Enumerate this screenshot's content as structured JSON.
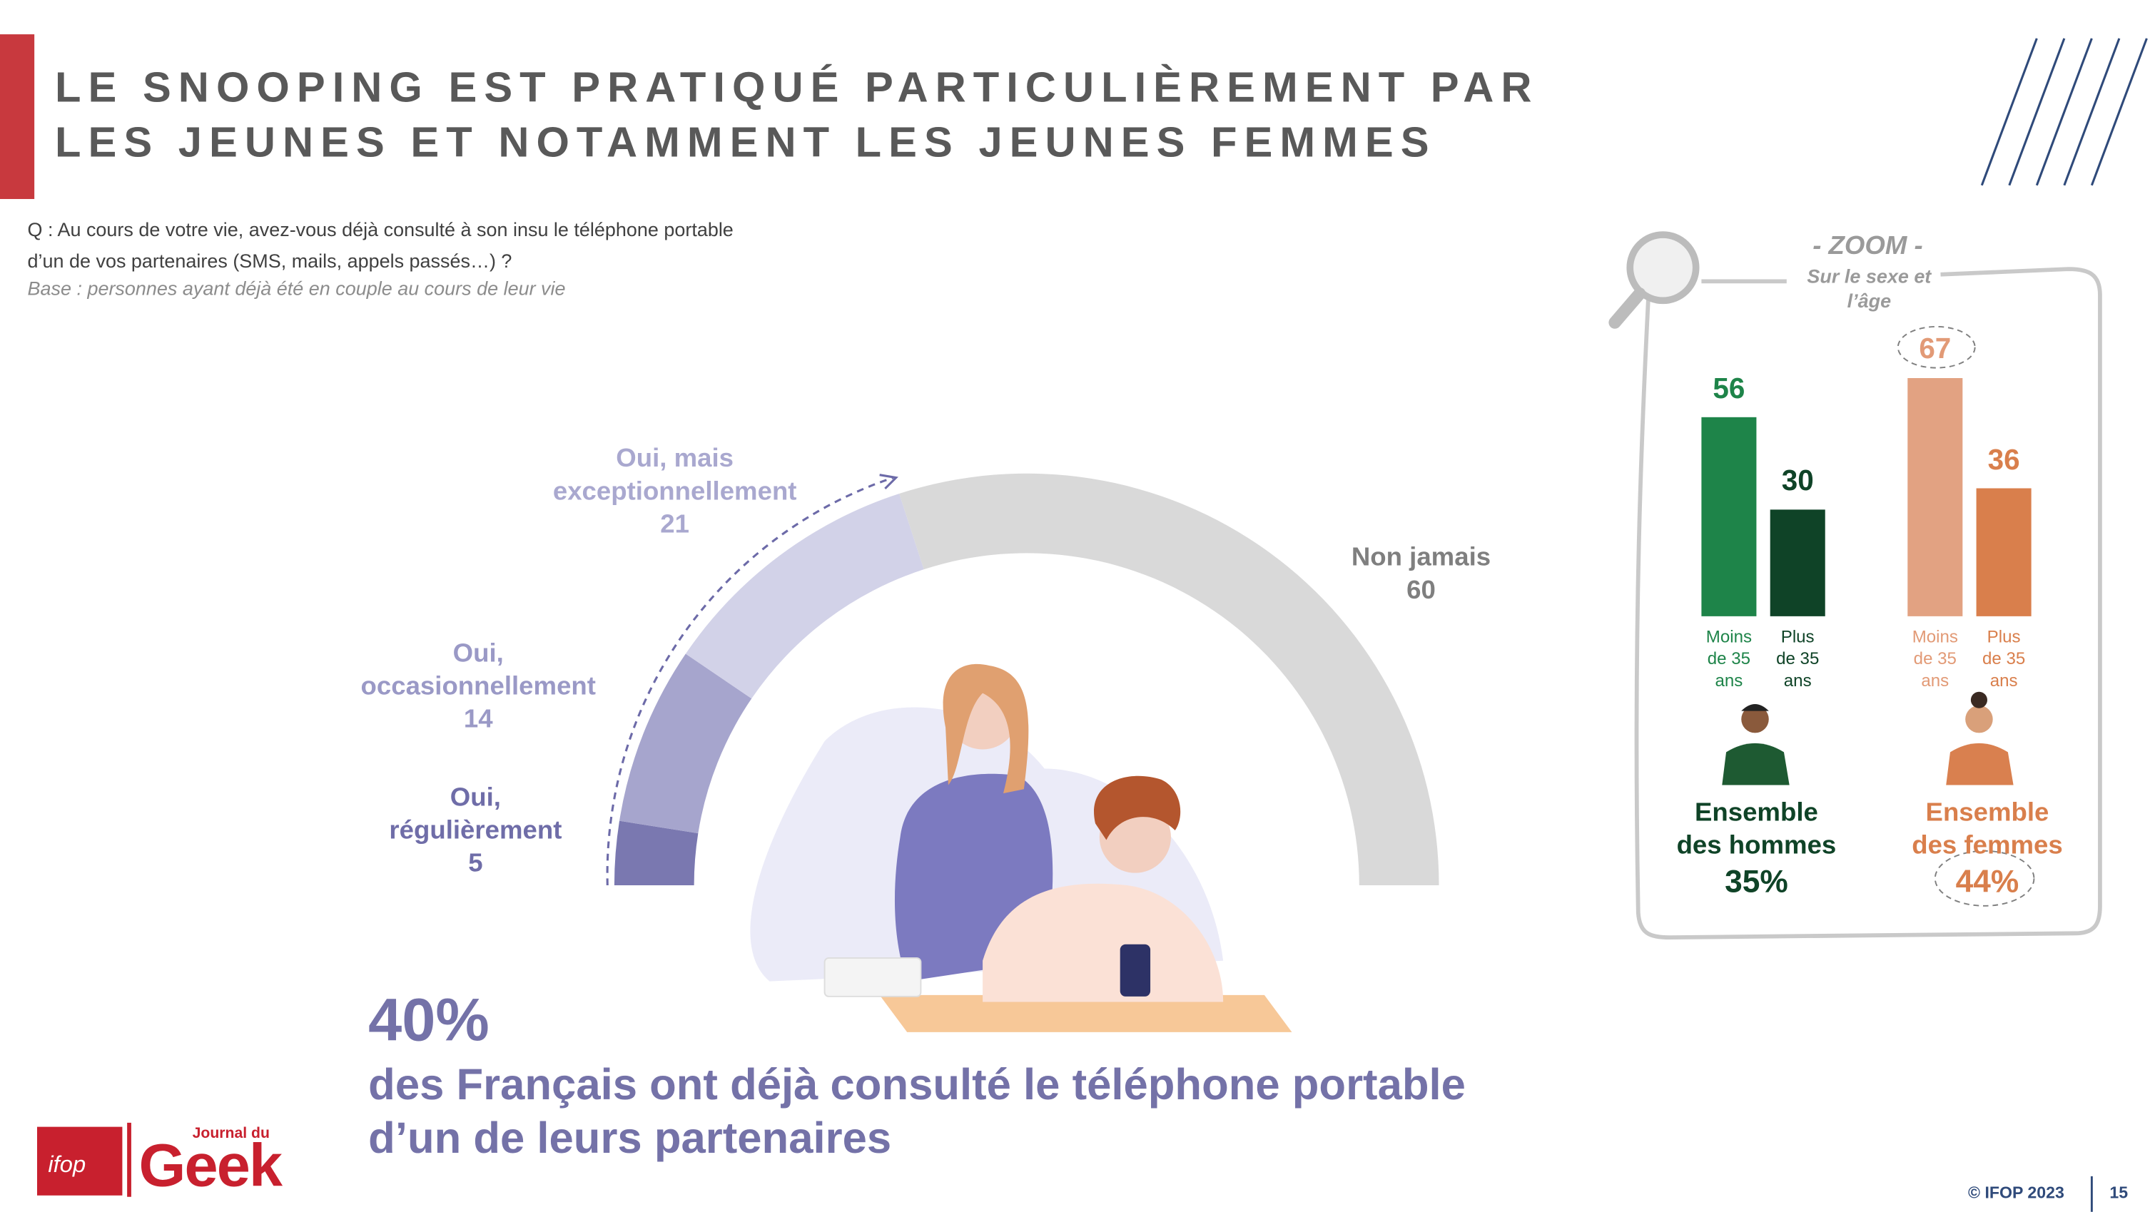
{
  "header": {
    "title": "LE SNOOPING EST PRATIQUÉ PARTICULIÈREMENT PAR\nLES JEUNES ET NOTAMMENT LES JEUNES FEMMES",
    "question": "Q : Au cours de votre vie, avez-vous déjà consulté à son insu le téléphone portable\nd’un de vos partenaires (SMS, mails, appels passés…) ?",
    "base": "Base : personnes ayant déjà été en couple au cours de leur vie"
  },
  "chart_data": [
    {
      "type": "half-donut",
      "categories": [
        "Oui,\nrégulièrement",
        "Oui,\noccasionnellement",
        "Oui, mais\nexceptionnellement",
        "Non jamais"
      ],
      "values": [
        5,
        14,
        21,
        60
      ],
      "colors": [
        "#7a78b0",
        "#a6a5cd",
        "#d2d2e8",
        "#d9d9d9"
      ],
      "label_colors": [
        "#6f6da8",
        "#9a99c6",
        "#a9a8cf",
        "#7f7f7f"
      ]
    },
    {
      "type": "bar",
      "title": "- ZOOM -",
      "subtitle": "Sur le sexe et\nl’âge",
      "categories": [
        "Moins\nde 35\nans",
        "Plus\nde 35\nans",
        "Moins\nde 35\nans",
        "Plus\nde 35\nans"
      ],
      "values": [
        56,
        30,
        67,
        36
      ],
      "colors": [
        "#1e8449",
        "#0f4327",
        "#e2a282",
        "#d97f4c"
      ],
      "label_colors": [
        "#1e8449",
        "#0f4327",
        "#e29a76",
        "#d97f4c"
      ],
      "groups": [
        {
          "label": "Ensemble\ndes hommes",
          "value": 35,
          "value_label": "35%",
          "color": "#0f4327"
        },
        {
          "label": "Ensemble\ndes femmes",
          "value": 44,
          "value_label": "44%",
          "color": "#d97f4c"
        }
      ]
    }
  ],
  "headline": {
    "value": 40,
    "value_label": "40%",
    "text": "des Français ont déjà consulté le téléphone portable\nd’un de leurs partenaires"
  },
  "logo": {
    "ifop": "ifop",
    "journal": "Journal du",
    "geek": "Geek"
  },
  "footer": {
    "copyright": "© IFOP 2023",
    "page": "15"
  }
}
